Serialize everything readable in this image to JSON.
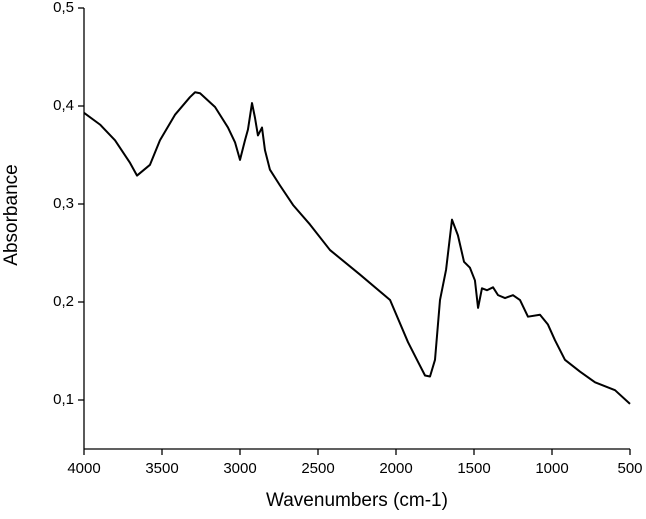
{
  "chart_data": {
    "type": "line",
    "x_label": "Wavenumbers (cm-1)",
    "y_label": "Absorbance",
    "xlim": [
      4000,
      500
    ],
    "ylim": [
      0.05,
      0.5
    ],
    "xticks": [
      4000,
      3500,
      3000,
      2500,
      2000,
      1500,
      1000,
      500
    ],
    "yticks": [
      {
        "value": 0.1,
        "label": "0,1"
      },
      {
        "value": 0.2,
        "label": "0,2"
      },
      {
        "value": 0.3,
        "label": "0,3"
      },
      {
        "value": 0.4,
        "label": "0,4"
      },
      {
        "value": 0.5,
        "label": "0,5"
      }
    ],
    "color": "#000000",
    "x": [
      4000,
      3897,
      3801,
      3705,
      3660,
      3577,
      3513,
      3417,
      3321,
      3288,
      3256,
      3160,
      3077,
      3032,
      3000,
      2968,
      2949,
      2923,
      2904,
      2885,
      2859,
      2840,
      2808,
      2744,
      2660,
      2551,
      2423,
      2231,
      2038,
      1923,
      1859,
      1814,
      1782,
      1750,
      1718,
      1679,
      1641,
      1603,
      1564,
      1526,
      1494,
      1474,
      1449,
      1417,
      1378,
      1346,
      1301,
      1250,
      1205,
      1154,
      1077,
      1026,
      981,
      917,
      821,
      724,
      596,
      500
    ],
    "values": [
      0.393,
      0.381,
      0.365,
      0.342,
      0.329,
      0.34,
      0.365,
      0.391,
      0.409,
      0.414,
      0.413,
      0.399,
      0.378,
      0.363,
      0.345,
      0.365,
      0.376,
      0.403,
      0.388,
      0.37,
      0.378,
      0.355,
      0.335,
      0.319,
      0.299,
      0.279,
      0.253,
      0.228,
      0.202,
      0.159,
      0.139,
      0.125,
      0.124,
      0.141,
      0.202,
      0.233,
      0.284,
      0.268,
      0.241,
      0.235,
      0.222,
      0.194,
      0.214,
      0.212,
      0.215,
      0.207,
      0.204,
      0.207,
      0.202,
      0.185,
      0.187,
      0.177,
      0.161,
      0.141,
      0.129,
      0.118,
      0.11,
      0.096
    ]
  }
}
